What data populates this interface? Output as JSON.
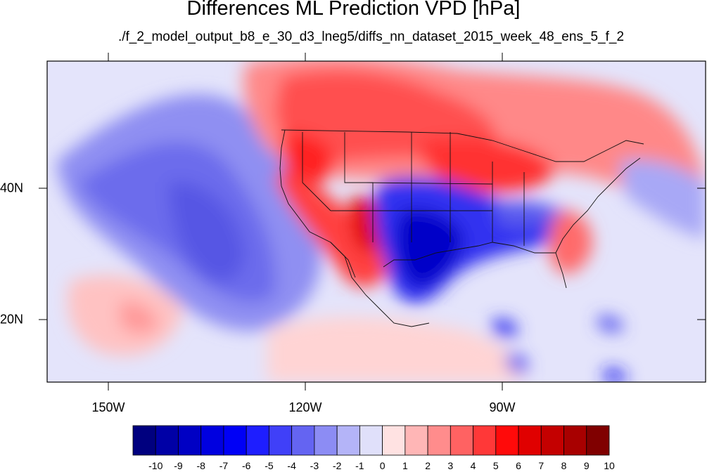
{
  "title": "Differences ML Prediction VPD [hPa]",
  "subtitle": "./f_2_model_output_b8_e_30_d3_lneg5/diffs_nn_dataset_2015_week_48_ens_5_f_2",
  "map": {
    "longitude_labels": [
      "150W",
      "120W",
      "90W"
    ],
    "latitude_labels": [
      "40N",
      "20N"
    ]
  },
  "colorbar": {
    "labels": [
      "-10",
      "-9",
      "-8",
      "-7",
      "-6",
      "-5",
      "-4",
      "-3",
      "-2",
      "-1",
      "0",
      "1",
      "2",
      "3",
      "4",
      "5",
      "6",
      "7",
      "8",
      "9",
      "10"
    ],
    "colors": [
      "#00007f",
      "#0000a6",
      "#0000c4",
      "#0000e0",
      "#0000f6",
      "#1e1eff",
      "#4040f8",
      "#6464f2",
      "#8c8cf4",
      "#b4b4f8",
      "#e0e0fa",
      "#ffe2e2",
      "#ffb6b6",
      "#ff8c8c",
      "#ff6262",
      "#ff3838",
      "#ff0a0a",
      "#e00000",
      "#c40000",
      "#a80000",
      "#800000"
    ]
  }
}
